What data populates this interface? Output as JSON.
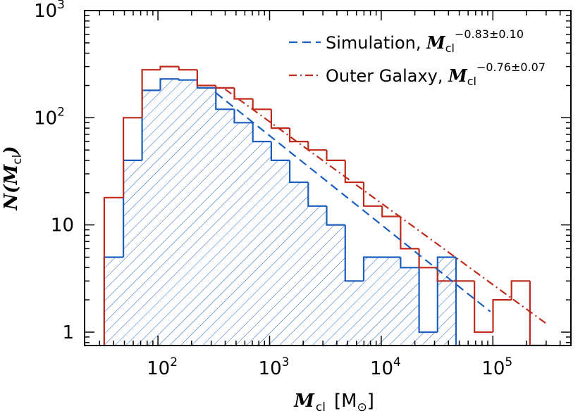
{
  "chart_data": {
    "type": "histogram",
    "xlabel": {
      "symbol": "M",
      "sub": "cl",
      "unit": "[M",
      "unit_suffix": "]",
      "unit_sub": "⊙"
    },
    "ylabel": {
      "symbol": "N(M",
      "sub": "cl",
      "close": ")"
    },
    "x_scale": "log",
    "y_scale": "log",
    "xlim": [
      22,
      500000
    ],
    "ylim": [
      0.75,
      1000
    ],
    "x_ticks": [
      {
        "value": 100,
        "label": "10",
        "exp": "2"
      },
      {
        "value": 1000,
        "label": "10",
        "exp": "3"
      },
      {
        "value": 10000,
        "label": "10",
        "exp": "4"
      },
      {
        "value": 100000,
        "label": "10",
        "exp": "5"
      }
    ],
    "y_ticks": [
      {
        "value": 1,
        "label": "1",
        "exp": ""
      },
      {
        "value": 10,
        "label": "10",
        "exp": ""
      },
      {
        "value": 100,
        "label": "10",
        "exp": "2"
      },
      {
        "value": 1000,
        "label": "10",
        "exp": "3"
      }
    ],
    "bin_edges": [
      33,
      49,
      72,
      105,
      154,
      225,
      330,
      483,
      707,
      1035,
      1515,
      2218,
      3247,
      4753,
      6958,
      10186,
      14911,
      21828,
      31954,
      46777,
      68476,
      100240,
      146740,
      214810,
      314460
    ],
    "series": [
      {
        "name": "Simulation",
        "exponent_label": "−0.83±0.10",
        "color": "#1a5fbf",
        "line_style": "dashed",
        "hatched": true,
        "counts": [
          5,
          40,
          180,
          230,
          225,
          190,
          120,
          90,
          60,
          40,
          25,
          15,
          10,
          3,
          5,
          5,
          4,
          1,
          5,
          0.75,
          0.75,
          0.75,
          0.75,
          0.75
        ],
        "fit": {
          "slope": -0.83,
          "amplitude": 21000,
          "x_range": [
            330,
            95000
          ]
        }
      },
      {
        "name": "Outer Galaxy",
        "exponent_label": "−0.76±0.07",
        "color": "#c02a1a",
        "line_style": "dash-dot",
        "hatched": false,
        "counts": [
          18,
          100,
          280,
          300,
          280,
          200,
          190,
          150,
          120,
          80,
          60,
          50,
          40,
          25,
          15,
          12,
          6,
          4,
          3,
          3,
          1,
          2,
          3,
          0.75
        ],
        "fit": {
          "slope": -0.76,
          "amplitude": 17500,
          "x_range": [
            400,
            300000
          ]
        }
      }
    ]
  }
}
